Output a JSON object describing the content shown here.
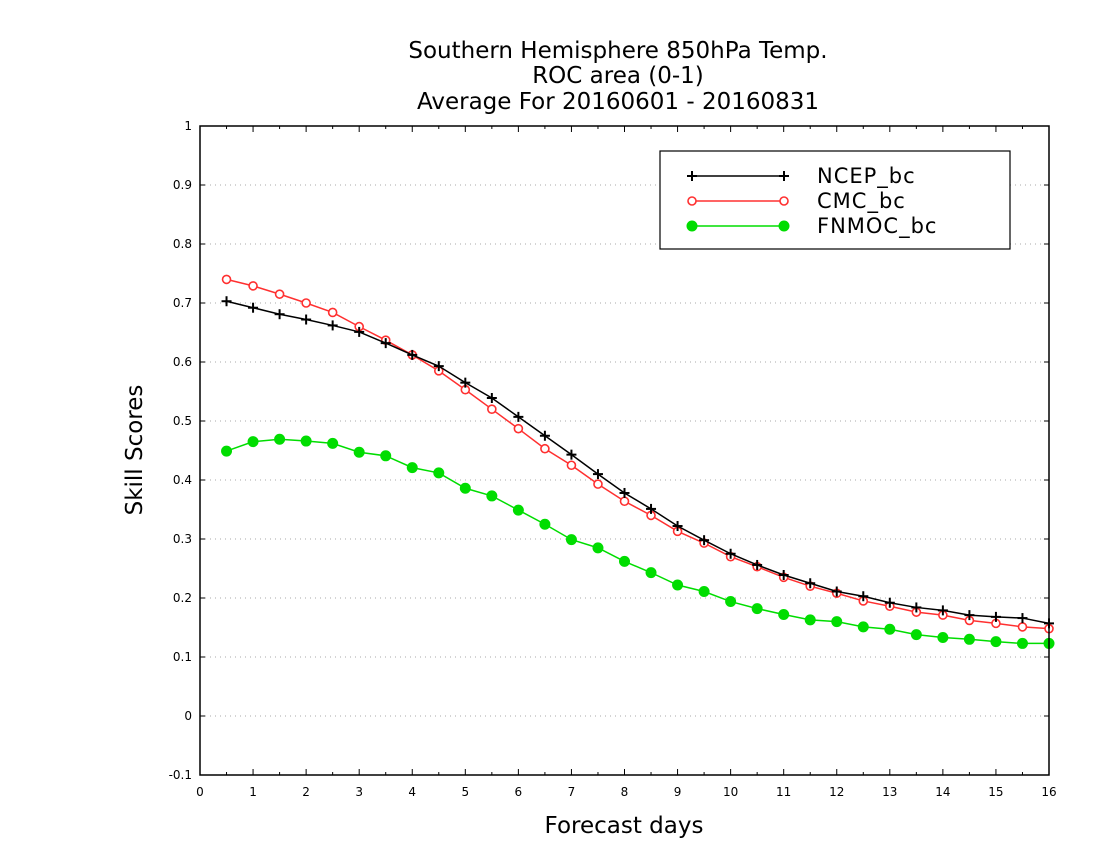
{
  "chart_data": {
    "type": "line",
    "title": [
      "Southern Hemisphere 850hPa Temp.",
      "ROC area (0-1)",
      "Average For 20160601 - 20160831"
    ],
    "xlabel": "Forecast days",
    "ylabel": "Skill Scores",
    "xlim": [
      0,
      16
    ],
    "ylim": [
      -0.1,
      1
    ],
    "xticks": [
      "0",
      "1",
      "2",
      "3",
      "4",
      "5",
      "6",
      "7",
      "8",
      "9",
      "10",
      "11",
      "12",
      "13",
      "14",
      "15",
      "16"
    ],
    "yticks": [
      "-0.1",
      "0",
      "0.1",
      "0.2",
      "0.3",
      "0.4",
      "0.5",
      "0.6",
      "0.7",
      "0.8",
      "0.9",
      "1"
    ],
    "grid": "horizontal-dotted",
    "legend_position": "top-right",
    "x": [
      0.5,
      1,
      1.5,
      2,
      2.5,
      3,
      3.5,
      4,
      4.5,
      5,
      5.5,
      6,
      6.5,
      7,
      7.5,
      8,
      8.5,
      9,
      9.5,
      10,
      10.5,
      11,
      11.5,
      12,
      12.5,
      13,
      13.5,
      14,
      14.5,
      15,
      15.5,
      16
    ],
    "series": [
      {
        "name": "NCEP_bc",
        "color": "#000000",
        "marker": "plus",
        "values": [
          0.703,
          0.692,
          0.681,
          0.672,
          0.662,
          0.651,
          0.632,
          0.612,
          0.593,
          0.565,
          0.539,
          0.507,
          0.475,
          0.443,
          0.41,
          0.378,
          0.351,
          0.322,
          0.298,
          0.275,
          0.256,
          0.239,
          0.225,
          0.211,
          0.203,
          0.192,
          0.184,
          0.179,
          0.171,
          0.168,
          0.166,
          0.157
        ]
      },
      {
        "name": "CMC_bc",
        "color": "#ff3030",
        "marker": "open-circle",
        "values": [
          0.74,
          0.729,
          0.715,
          0.7,
          0.684,
          0.66,
          0.637,
          0.612,
          0.585,
          0.553,
          0.52,
          0.487,
          0.453,
          0.425,
          0.393,
          0.364,
          0.34,
          0.313,
          0.293,
          0.27,
          0.253,
          0.235,
          0.22,
          0.208,
          0.195,
          0.186,
          0.176,
          0.171,
          0.162,
          0.157,
          0.151,
          0.148
        ]
      },
      {
        "name": "FNMOC_bc",
        "color": "#00dd00",
        "marker": "filled-circle",
        "values": [
          0.449,
          0.465,
          0.469,
          0.466,
          0.462,
          0.447,
          0.441,
          0.421,
          0.412,
          0.386,
          0.373,
          0.349,
          0.325,
          0.299,
          0.285,
          0.262,
          0.243,
          0.222,
          0.211,
          0.194,
          0.182,
          0.172,
          0.163,
          0.16,
          0.151,
          0.147,
          0.138,
          0.133,
          0.13,
          0.126,
          0.123,
          0.123
        ]
      }
    ]
  }
}
